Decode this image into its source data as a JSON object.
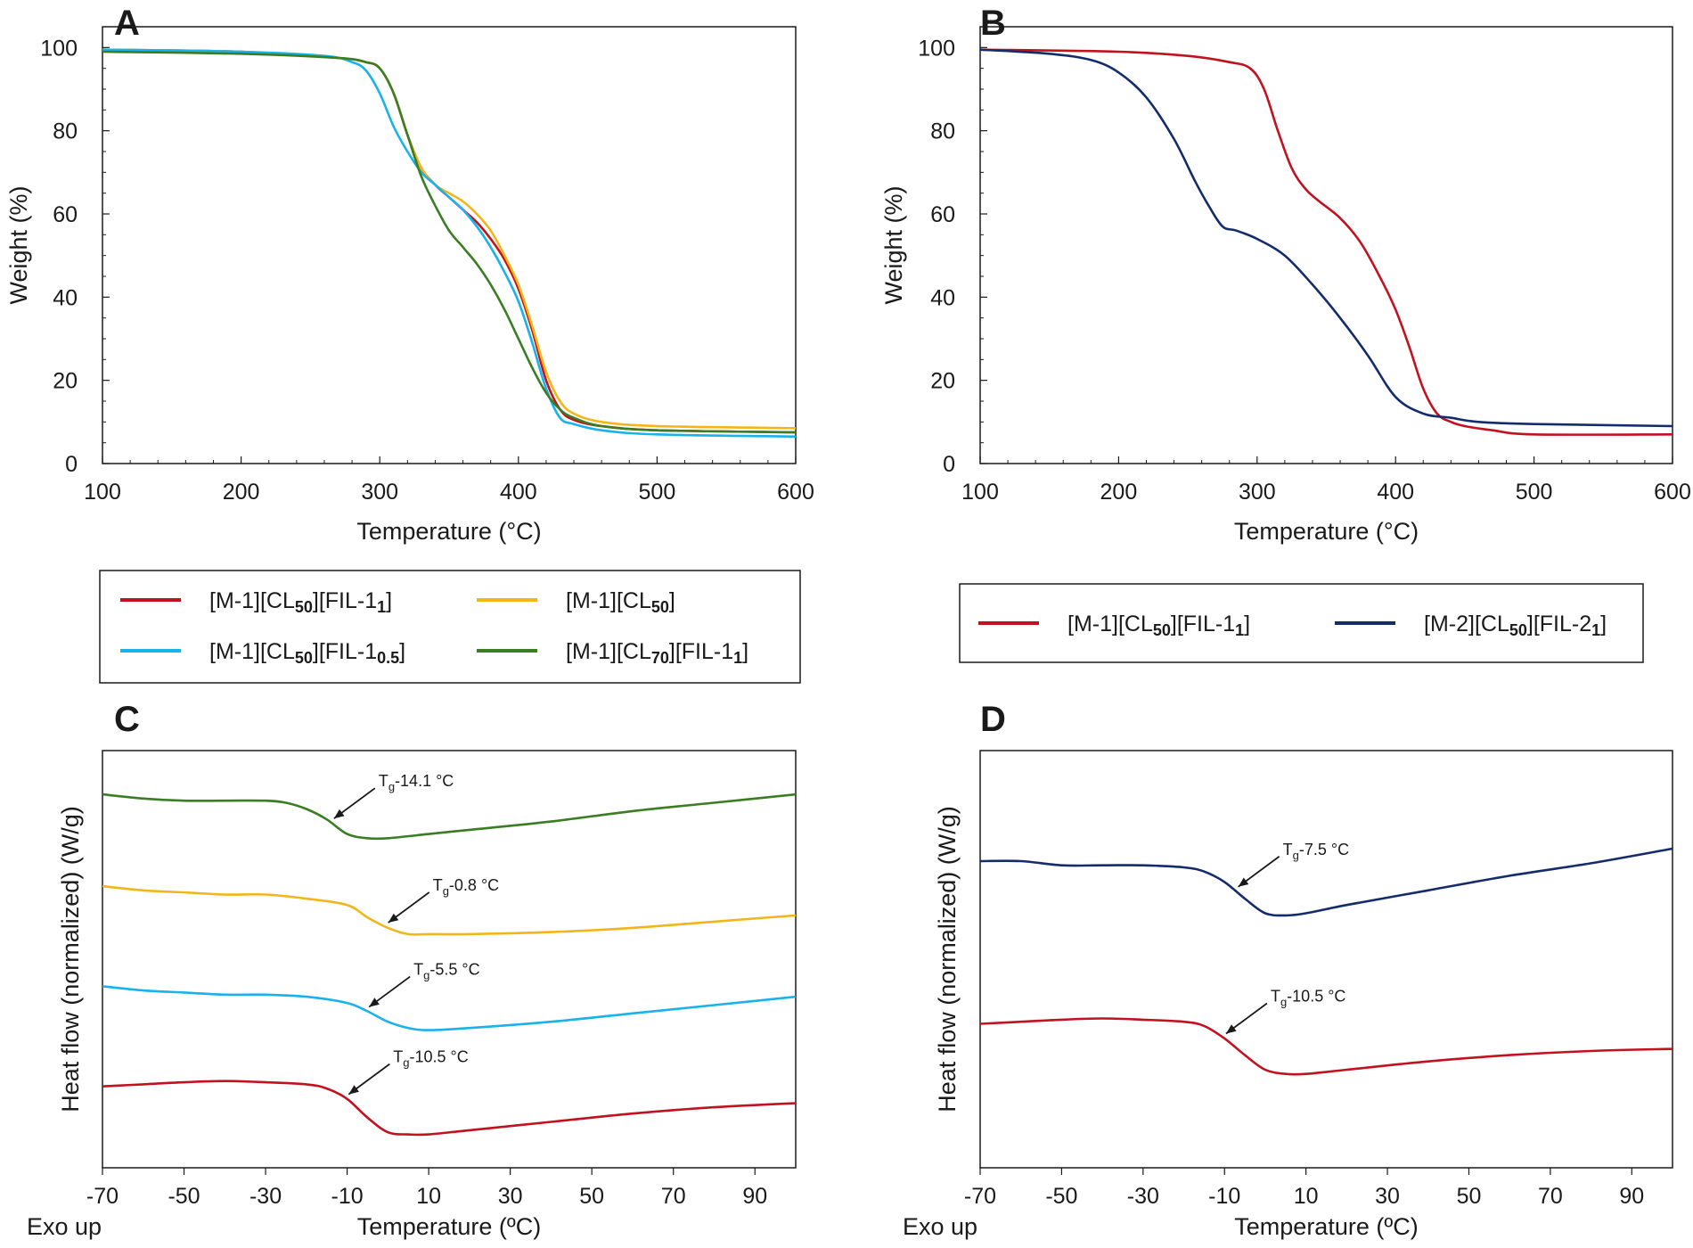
{
  "figure": {
    "panels": {
      "A": {
        "letter": "A"
      },
      "B": {
        "letter": "B"
      },
      "C": {
        "letter": "C"
      },
      "D": {
        "letter": "D"
      }
    },
    "exo_label": "Exo up"
  },
  "colors": {
    "red": "#c1121f",
    "yellow": "#f2b619",
    "cyan": "#19b2ea",
    "green": "#3a7d23",
    "navy": "#142c6b"
  },
  "legends": {
    "left": [
      {
        "color": "red",
        "parts": [
          [
            "[M-1][CL",
            false
          ],
          [
            "50",
            true
          ],
          [
            "][FIL-1",
            false
          ],
          [
            "1",
            true
          ],
          [
            "]",
            false
          ]
        ]
      },
      {
        "color": "yellow",
        "parts": [
          [
            "[M-1][CL",
            false
          ],
          [
            "50",
            true
          ],
          [
            "]",
            false
          ]
        ]
      },
      {
        "color": "cyan",
        "parts": [
          [
            "[M-1][CL",
            false
          ],
          [
            "50",
            true
          ],
          [
            "][FIL-1",
            false
          ],
          [
            "0.5",
            true
          ],
          [
            "]",
            false
          ]
        ]
      },
      {
        "color": "green",
        "parts": [
          [
            "[M-1][CL",
            false
          ],
          [
            "70",
            true
          ],
          [
            "][FIL-1",
            false
          ],
          [
            "1",
            true
          ],
          [
            "]",
            false
          ]
        ]
      }
    ],
    "right": [
      {
        "color": "red",
        "parts": [
          [
            "[M-1][CL",
            false
          ],
          [
            "50",
            true
          ],
          [
            "][FIL-1",
            false
          ],
          [
            "1",
            true
          ],
          [
            "]",
            false
          ]
        ]
      },
      {
        "color": "navy",
        "parts": [
          [
            "[M-2][CL",
            false
          ],
          [
            "50",
            true
          ],
          [
            "][FIL-2",
            false
          ],
          [
            "1",
            true
          ],
          [
            "]",
            false
          ]
        ]
      }
    ]
  },
  "chart_data": [
    {
      "panel": "A",
      "type": "line",
      "xlabel": "Temperature (°C)",
      "ylabel": "Weight (%)",
      "xlim": [
        100,
        600
      ],
      "ylim": [
        0,
        105
      ],
      "xticks": [
        100,
        200,
        300,
        400,
        500,
        600
      ],
      "yticks": [
        0,
        20,
        40,
        60,
        80,
        100
      ],
      "series": [
        {
          "name": "[M-1][CL50][FIL-11]",
          "color": "red",
          "x": [
            100,
            200,
            270,
            290,
            300,
            310,
            320,
            330,
            340,
            350,
            360,
            370,
            380,
            390,
            400,
            410,
            420,
            430,
            440,
            460,
            500,
            600
          ],
          "y": [
            99.5,
            99,
            97.5,
            96.5,
            95,
            89,
            79,
            71,
            67,
            64,
            61,
            58,
            54,
            49,
            42,
            32,
            20,
            13,
            10.5,
            9,
            8,
            7.5
          ]
        },
        {
          "name": "[M-1][CL50]",
          "color": "yellow",
          "x": [
            100,
            200,
            270,
            290,
            300,
            310,
            320,
            330,
            340,
            350,
            360,
            370,
            380,
            390,
            400,
            410,
            420,
            430,
            440,
            460,
            500,
            600
          ],
          "y": [
            99.5,
            99,
            97.5,
            96.5,
            95,
            89,
            79,
            71,
            67,
            65,
            63,
            60,
            56,
            50,
            43,
            33,
            22,
            15,
            12,
            10,
            9,
            8.5
          ]
        },
        {
          "name": "[M-1][CL50][FIL-10.5]",
          "color": "cyan",
          "x": [
            100,
            200,
            260,
            280,
            290,
            300,
            310,
            320,
            330,
            340,
            350,
            360,
            370,
            380,
            390,
            400,
            410,
            420,
            430,
            440,
            460,
            500,
            600
          ],
          "y": [
            99.5,
            99,
            98,
            96.5,
            94.5,
            89,
            81,
            75,
            70,
            67,
            64,
            61,
            57,
            52,
            46,
            39,
            29,
            18,
            11,
            9.5,
            8,
            7,
            6.5
          ]
        },
        {
          "name": "[M-1][CL70][FIL-11]",
          "color": "green",
          "x": [
            100,
            200,
            270,
            290,
            300,
            310,
            320,
            330,
            340,
            350,
            360,
            370,
            380,
            390,
            400,
            410,
            420,
            430,
            440,
            460,
            500,
            600
          ],
          "y": [
            99,
            98.5,
            97.5,
            96.5,
            95,
            89,
            79,
            69,
            62,
            56,
            52,
            48,
            43,
            37,
            30,
            23,
            17,
            13,
            11,
            9,
            8,
            7.5
          ]
        }
      ]
    },
    {
      "panel": "B",
      "type": "line",
      "xlabel": "Temperature (°C)",
      "ylabel": "Weight (%)",
      "xlim": [
        100,
        600
      ],
      "ylim": [
        0,
        105
      ],
      "xticks": [
        100,
        200,
        300,
        400,
        500,
        600
      ],
      "yticks": [
        0,
        20,
        40,
        60,
        80,
        100
      ],
      "series": [
        {
          "name": "[M-1][CL50][FIL-11]",
          "color": "red",
          "x": [
            100,
            200,
            250,
            280,
            295,
            305,
            315,
            325,
            335,
            345,
            360,
            375,
            390,
            400,
            410,
            420,
            430,
            440,
            450,
            470,
            500,
            600
          ],
          "y": [
            99.5,
            99,
            98,
            96.5,
            95,
            90,
            80,
            71,
            66,
            63,
            59,
            53,
            44,
            37,
            28,
            18,
            12,
            10,
            9,
            8,
            7,
            7
          ]
        },
        {
          "name": "[M-2][CL50][FIL-21]",
          "color": "navy",
          "x": [
            100,
            150,
            180,
            200,
            220,
            240,
            255,
            265,
            275,
            285,
            300,
            320,
            340,
            360,
            380,
            400,
            420,
            440,
            460,
            500,
            600
          ],
          "y": [
            99.5,
            98.5,
            97,
            94,
            88,
            78,
            68,
            62,
            57,
            56,
            54,
            50,
            43,
            35,
            26,
            16,
            12,
            11,
            10,
            9.5,
            9
          ]
        }
      ]
    },
    {
      "panel": "C",
      "type": "line",
      "xlabel": "Temperature (ºC)",
      "ylabel": "Heat flow (normalized) (W/g)",
      "xlim": [
        -70,
        100
      ],
      "xticks": [
        -70,
        -50,
        -30,
        -10,
        10,
        30,
        50,
        70,
        90
      ],
      "ylim": [
        0,
        1
      ],
      "annotations": [
        {
          "series": "[M-1][CL70][FIL-11]",
          "at": -14.1,
          "text": "-14.1 °C"
        },
        {
          "series": "[M-1][CL50]",
          "at": -0.8,
          "text": "-0.8 °C"
        },
        {
          "series": "[M-1][CL50][FIL-10.5]",
          "at": -5.5,
          "text": "-5.5 °C"
        },
        {
          "series": "[M-1][CL50][FIL-11]",
          "at": -10.5,
          "text": "-10.5 °C"
        }
      ],
      "series": [
        {
          "name": "[M-1][CL70][FIL-11]",
          "color": "green",
          "x": [
            -70,
            -60,
            -50,
            -40,
            -30,
            -25,
            -20,
            -15,
            -10,
            -5,
            0,
            10,
            20,
            40,
            60,
            80,
            100
          ],
          "y": [
            0.895,
            0.885,
            0.88,
            0.88,
            0.88,
            0.875,
            0.86,
            0.835,
            0.8,
            0.79,
            0.79,
            0.8,
            0.81,
            0.83,
            0.855,
            0.875,
            0.895
          ]
        },
        {
          "name": "[M-1][CL50]",
          "color": "yellow",
          "x": [
            -70,
            -60,
            -50,
            -40,
            -30,
            -20,
            -10,
            -5,
            0,
            5,
            10,
            20,
            40,
            60,
            80,
            100
          ],
          "y": [
            0.675,
            0.665,
            0.66,
            0.655,
            0.655,
            0.645,
            0.63,
            0.6,
            0.575,
            0.56,
            0.56,
            0.56,
            0.565,
            0.575,
            0.59,
            0.605
          ]
        },
        {
          "name": "[M-1][CL50][FIL-10.5]",
          "color": "cyan",
          "x": [
            -70,
            -60,
            -50,
            -40,
            -30,
            -20,
            -10,
            -5,
            0,
            5,
            10,
            20,
            40,
            60,
            80,
            100
          ],
          "y": [
            0.435,
            0.425,
            0.42,
            0.415,
            0.415,
            0.41,
            0.395,
            0.375,
            0.35,
            0.335,
            0.33,
            0.335,
            0.35,
            0.37,
            0.39,
            0.41
          ]
        },
        {
          "name": "[M-1][CL50][FIL-11]",
          "color": "red",
          "x": [
            -70,
            -60,
            -50,
            -40,
            -30,
            -20,
            -15,
            -10,
            -5,
            0,
            5,
            10,
            20,
            40,
            60,
            80,
            100
          ],
          "y": [
            0.195,
            0.2,
            0.205,
            0.208,
            0.205,
            0.2,
            0.19,
            0.165,
            0.12,
            0.085,
            0.08,
            0.08,
            0.09,
            0.11,
            0.13,
            0.145,
            0.155
          ]
        }
      ]
    },
    {
      "panel": "D",
      "type": "line",
      "xlabel": "Temperature (ºC)",
      "ylabel": "Heat flow (normalized) (W/g)",
      "xlim": [
        -70,
        100
      ],
      "xticks": [
        -70,
        -50,
        -30,
        -10,
        10,
        30,
        50,
        70,
        90
      ],
      "ylim": [
        0,
        1
      ],
      "annotations": [
        {
          "series": "[M-2][CL50][FIL-21]",
          "at": -7.5,
          "text": "-7.5 °C"
        },
        {
          "series": "[M-1][CL50][FIL-11]",
          "at": -10.5,
          "text": "-10.5 °C"
        }
      ],
      "series": [
        {
          "name": "[M-2][CL50][FIL-21]",
          "color": "navy",
          "x": [
            -70,
            -60,
            -50,
            -40,
            -30,
            -20,
            -15,
            -10,
            -5,
            0,
            5,
            10,
            20,
            40,
            60,
            80,
            100
          ],
          "y": [
            0.735,
            0.735,
            0.725,
            0.725,
            0.725,
            0.72,
            0.71,
            0.685,
            0.645,
            0.61,
            0.605,
            0.61,
            0.63,
            0.665,
            0.7,
            0.73,
            0.765
          ]
        },
        {
          "name": "[M-1][CL50][FIL-11]",
          "color": "red",
          "x": [
            -70,
            -60,
            -50,
            -40,
            -30,
            -20,
            -15,
            -10,
            -5,
            0,
            5,
            10,
            20,
            40,
            60,
            80,
            100
          ],
          "y": [
            0.345,
            0.35,
            0.355,
            0.358,
            0.355,
            0.35,
            0.34,
            0.31,
            0.27,
            0.235,
            0.225,
            0.225,
            0.235,
            0.255,
            0.27,
            0.28,
            0.285
          ]
        }
      ]
    }
  ]
}
